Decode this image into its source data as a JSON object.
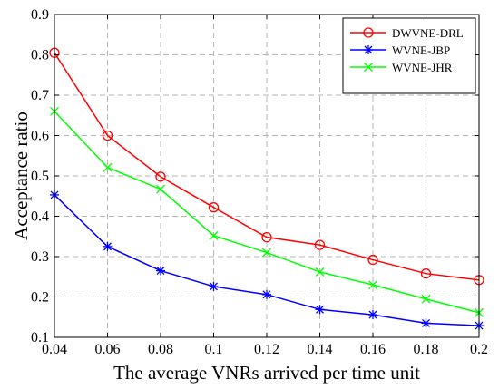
{
  "chart_data": {
    "type": "line",
    "xlabel": "The average VNRs arrived per time unit",
    "ylabel": "Acceptance ratio",
    "x": [
      0.04,
      0.06,
      0.08,
      0.1,
      0.12,
      0.14,
      0.16,
      0.18,
      0.2
    ],
    "x_tick_labels": [
      "0.04",
      "0.06",
      "0.08",
      "0.1",
      "0.12",
      "0.14",
      "0.16",
      "0.18",
      "0.2"
    ],
    "y_ticks": [
      0.1,
      0.2,
      0.3,
      0.4,
      0.5,
      0.6,
      0.7,
      0.8,
      0.9
    ],
    "y_tick_labels": [
      "0.1",
      "0.2",
      "0.3",
      "0.4",
      "0.5",
      "0.6",
      "0.7",
      "0.8",
      "0.9"
    ],
    "xlim": [
      0.04,
      0.2
    ],
    "ylim": [
      0.1,
      0.9
    ],
    "grid": true,
    "legend_position": "top-right",
    "series": [
      {
        "name": "DWVNE-DRL",
        "color": "#ff0000",
        "marker": "circle",
        "values": [
          0.805,
          0.6,
          0.498,
          0.422,
          0.348,
          0.329,
          0.292,
          0.258,
          0.242
        ]
      },
      {
        "name": "WVNE-JBP",
        "color": "#0000ff",
        "marker": "asterisk",
        "values": [
          0.453,
          0.325,
          0.265,
          0.226,
          0.206,
          0.169,
          0.156,
          0.135,
          0.129
        ]
      },
      {
        "name": "WVNE-JHR",
        "color": "#00ff00",
        "marker": "x",
        "values": [
          0.66,
          0.521,
          0.467,
          0.352,
          0.31,
          0.262,
          0.23,
          0.195,
          0.161
        ]
      }
    ]
  }
}
